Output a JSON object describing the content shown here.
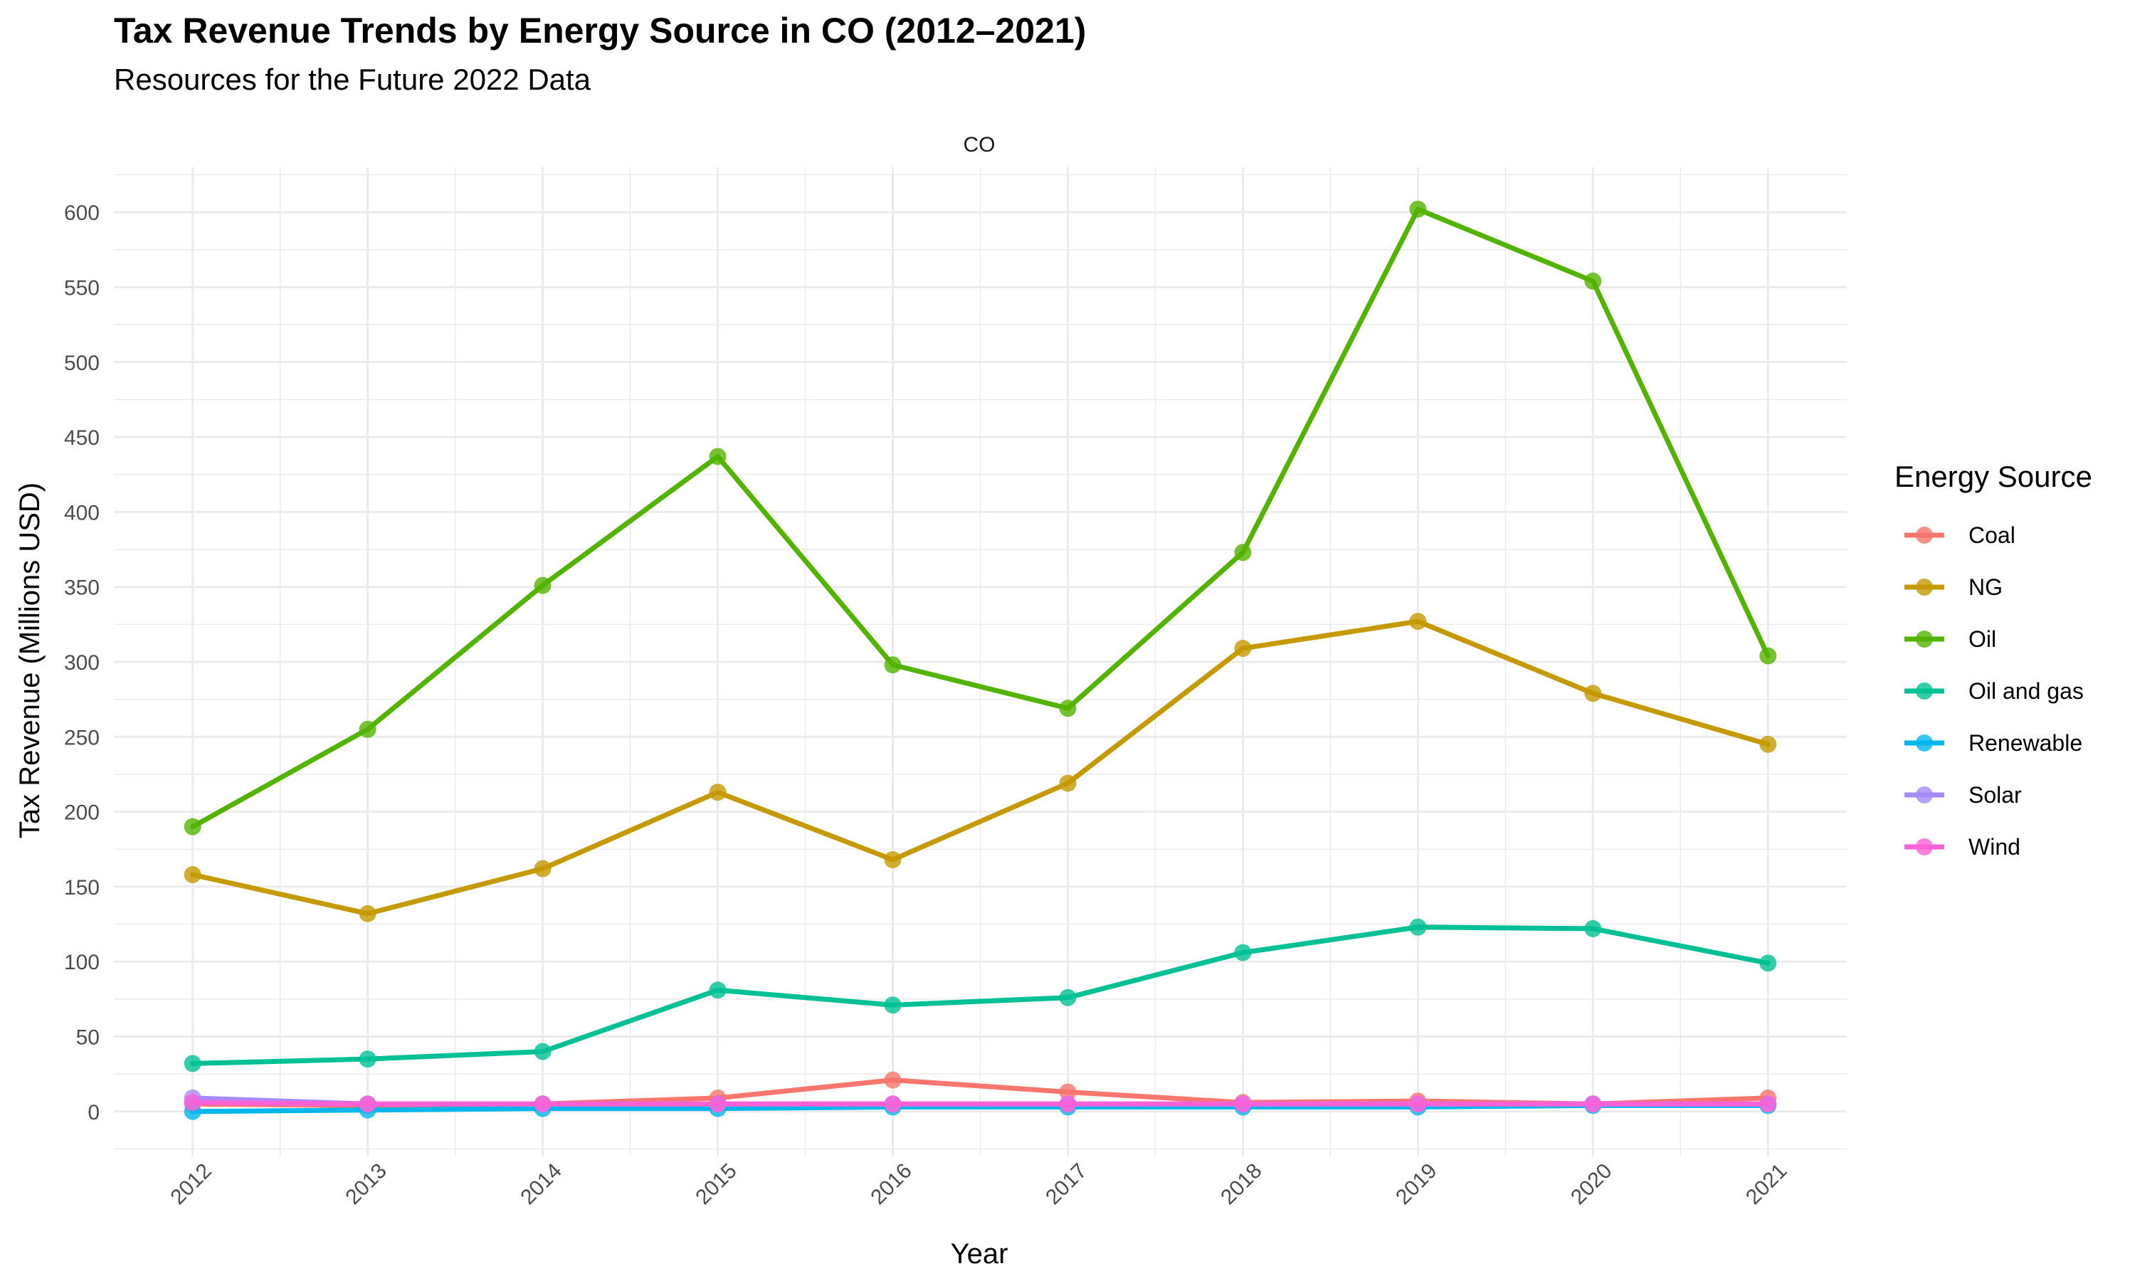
{
  "chart_data": {
    "type": "line",
    "title": "Tax Revenue Trends by Energy Source in CO (2012–2021)",
    "subtitle": "Resources for the Future 2022 Data",
    "facet_label": "CO",
    "xlabel": "Year",
    "ylabel": "Tax Revenue (Millions USD)",
    "x": [
      2012,
      2013,
      2014,
      2015,
      2016,
      2017,
      2018,
      2019,
      2020,
      2021
    ],
    "x_tick_labels": [
      "2012",
      "2013",
      "2014",
      "2015",
      "2016",
      "2017",
      "2018",
      "2019",
      "2020",
      "2021"
    ],
    "xlim": [
      2011.55,
      2021.45
    ],
    "ylim": [
      -30,
      630
    ],
    "y_ticks": [
      0,
      50,
      100,
      150,
      200,
      250,
      300,
      350,
      400,
      450,
      500,
      550,
      600
    ],
    "y_tick_labels": [
      "0",
      "50",
      "100",
      "150",
      "200",
      "250",
      "300",
      "350",
      "400",
      "450",
      "500",
      "550",
      "600"
    ],
    "grid": true,
    "legend_title": "Energy Source",
    "legend_position": "right",
    "series": [
      {
        "name": "Coal",
        "color": "#F8766D",
        "values": [
          5,
          4,
          5,
          9,
          21,
          13,
          6,
          7,
          5,
          9
        ]
      },
      {
        "name": "NG",
        "color": "#C49A00",
        "values": [
          158,
          132,
          162,
          213,
          168,
          219,
          309,
          327,
          279,
          245
        ]
      },
      {
        "name": "Oil",
        "color": "#53B400",
        "values": [
          190,
          255,
          351,
          437,
          298,
          269,
          373,
          602,
          554,
          304
        ]
      },
      {
        "name": "Oil and gas",
        "color": "#00C094",
        "values": [
          32,
          35,
          40,
          81,
          71,
          76,
          106,
          123,
          122,
          99
        ]
      },
      {
        "name": "Renewable",
        "color": "#00B6EB",
        "values": [
          0,
          1,
          2,
          2,
          3,
          3,
          3,
          3,
          4,
          4
        ]
      },
      {
        "name": "Solar",
        "color": "#A58AFF",
        "values": [
          9,
          5,
          5,
          5,
          5,
          5,
          5,
          5,
          5,
          5
        ]
      },
      {
        "name": "Wind",
        "color": "#FB61D7",
        "values": [
          6,
          5,
          5,
          5,
          5,
          5,
          5,
          5,
          5,
          5
        ]
      }
    ]
  }
}
